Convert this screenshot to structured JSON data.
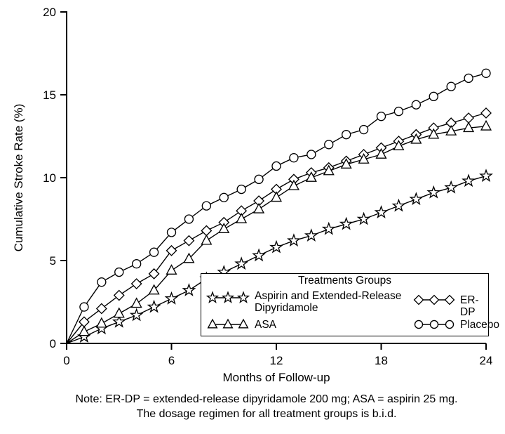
{
  "chart_data": {
    "type": "line",
    "title": "",
    "xlabel": "Months of Follow-up",
    "ylabel": "Cumulative Stroke Rate (%)",
    "xlim": [
      0,
      24
    ],
    "ylim": [
      0,
      20
    ],
    "xticks": [
      0,
      6,
      12,
      18,
      24
    ],
    "yticks": [
      0,
      5,
      10,
      15,
      20
    ],
    "grid": false,
    "legend_position": "inside-bottom-right",
    "x": [
      0,
      1,
      2,
      3,
      4,
      5,
      6,
      7,
      8,
      9,
      10,
      11,
      12,
      13,
      14,
      15,
      16,
      17,
      18,
      19,
      20,
      21,
      22,
      23,
      24
    ],
    "series": [
      {
        "name": "Aspirin and Extended-Release Dipyridamole",
        "marker": "star",
        "values": [
          0,
          0.4,
          0.9,
          1.3,
          1.7,
          2.2,
          2.7,
          3.2,
          3.9,
          4.3,
          4.8,
          5.3,
          5.8,
          6.2,
          6.5,
          6.9,
          7.2,
          7.5,
          7.9,
          8.3,
          8.7,
          9.1,
          9.4,
          9.8,
          10.1
        ]
      },
      {
        "name": "ER-DP",
        "marker": "diamond",
        "values": [
          0,
          1.3,
          2.1,
          2.9,
          3.6,
          4.2,
          5.6,
          6.2,
          6.8,
          7.3,
          8.0,
          8.6,
          9.3,
          9.9,
          10.3,
          10.6,
          11.0,
          11.4,
          11.8,
          12.2,
          12.6,
          13.0,
          13.3,
          13.6,
          13.9
        ]
      },
      {
        "name": "ASA",
        "marker": "triangle",
        "values": [
          0,
          0.7,
          1.2,
          1.8,
          2.4,
          3.2,
          4.4,
          5.1,
          6.2,
          6.9,
          7.5,
          8.1,
          8.8,
          9.5,
          10.0,
          10.4,
          10.8,
          11.1,
          11.4,
          11.9,
          12.3,
          12.6,
          12.8,
          13.0,
          13.1
        ]
      },
      {
        "name": "Placebo",
        "marker": "circle",
        "values": [
          0,
          2.2,
          3.7,
          4.3,
          4.8,
          5.5,
          6.7,
          7.5,
          8.3,
          8.8,
          9.3,
          9.9,
          10.7,
          11.2,
          11.4,
          12.0,
          12.6,
          12.9,
          13.7,
          14.0,
          14.4,
          14.9,
          15.5,
          16.0,
          16.3
        ]
      }
    ]
  },
  "legend": {
    "title": "Treatments Groups",
    "items": [
      {
        "label_line1": "Aspirin and Extended-Release",
        "label_line2": "Dipyridamole",
        "marker": "star"
      },
      {
        "label": "ER-DP",
        "marker": "diamond"
      },
      {
        "label": "ASA",
        "marker": "triangle"
      },
      {
        "label": "Placebo",
        "marker": "circle"
      }
    ]
  },
  "note": {
    "line1": "Note: ER-DP = extended-release dipyridamole 200 mg; ASA = aspirin 25 mg.",
    "line2": "The dosage regimen for all treatment groups is b.i.d."
  },
  "colors": {
    "stroke": "#000000",
    "background": "#ffffff"
  }
}
